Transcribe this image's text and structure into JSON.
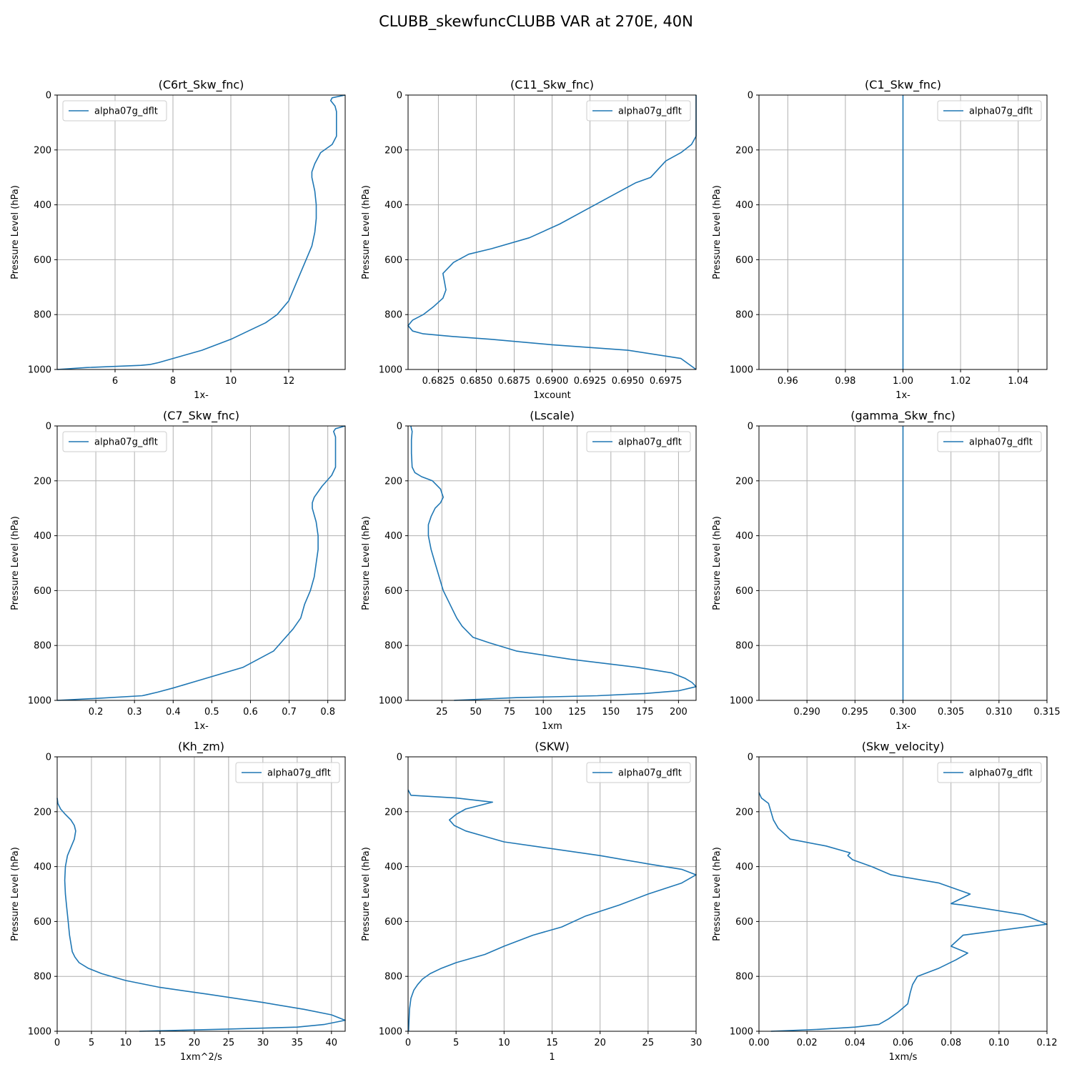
{
  "figure_title": "CLUBB_skewfuncCLUBB VAR at 270E, 40N",
  "colors": {
    "line": "#1f77b4",
    "grid": "#b0b0b0",
    "axes": "#000000"
  },
  "chart_data": [
    {
      "type": "line",
      "title": "(C6rt_Skw_fnc)",
      "xlabel": "1x-",
      "ylabel": "Pressure Level (hPa)",
      "xlim": [
        4.0,
        13.95
      ],
      "ylim": [
        1000,
        0
      ],
      "xticks": [
        6,
        8,
        10,
        12
      ],
      "xtick_labels": [
        "6",
        "8",
        "10",
        "12"
      ],
      "yticks": [
        0,
        200,
        400,
        600,
        800,
        1000
      ],
      "ytick_labels": [
        "0",
        "200",
        "400",
        "600",
        "800",
        "1000"
      ],
      "legend": [
        "alpha07g_dflt"
      ],
      "legend_loc": "upper left",
      "grid": true,
      "series": [
        {
          "name": "alpha07g_dflt",
          "x": [
            13.95,
            13.5,
            13.45,
            13.6,
            13.65,
            13.65,
            13.65,
            13.5,
            13.1,
            12.9,
            12.8,
            12.8,
            12.9,
            12.95,
            12.95,
            12.9,
            12.8,
            12.6,
            12.4,
            12.2,
            12.0,
            11.6,
            11.2,
            10.6,
            10.0,
            9.0,
            8.0,
            7.5,
            7.2,
            6.9,
            5.0,
            4.0
          ],
          "y": [
            0,
            10,
            20,
            40,
            60,
            100,
            150,
            180,
            210,
            250,
            280,
            300,
            350,
            400,
            450,
            500,
            550,
            600,
            650,
            700,
            750,
            800,
            830,
            860,
            890,
            930,
            960,
            975,
            982,
            985,
            993,
            1000
          ]
        }
      ]
    },
    {
      "type": "line",
      "title": "(C11_Skw_fnc)",
      "xlabel": "1xcount",
      "ylabel": "Pressure Level (hPa)",
      "xlim": [
        0.6805,
        0.6995
      ],
      "ylim": [
        1000,
        0
      ],
      "xticks": [
        0.6825,
        0.685,
        0.6875,
        0.69,
        0.6925,
        0.695,
        0.6975
      ],
      "xtick_labels": [
        "0.6825",
        "0.6850",
        "0.6875",
        "0.6900",
        "0.6925",
        "0.6950",
        "0.6975"
      ],
      "yticks": [
        0,
        200,
        400,
        600,
        800,
        1000
      ],
      "ytick_labels": [
        "0",
        "200",
        "400",
        "600",
        "800",
        "1000"
      ],
      "legend": [
        "alpha07g_dflt"
      ],
      "legend_loc": "upper right",
      "grid": true,
      "series": [
        {
          "name": "alpha07g_dflt",
          "x": [
            0.6995,
            0.6995,
            0.6995,
            0.6992,
            0.6985,
            0.6975,
            0.697,
            0.6965,
            0.6955,
            0.6945,
            0.6925,
            0.6905,
            0.6885,
            0.686,
            0.6845,
            0.6835,
            0.6828,
            0.6829,
            0.683,
            0.6828,
            0.6822,
            0.6815,
            0.6808,
            0.6805,
            0.6808,
            0.6815,
            0.6835,
            0.686,
            0.69,
            0.695,
            0.6985,
            0.6995
          ],
          "y": [
            0,
            100,
            150,
            180,
            210,
            240,
            270,
            300,
            320,
            350,
            410,
            470,
            520,
            560,
            580,
            610,
            650,
            680,
            710,
            740,
            770,
            800,
            820,
            840,
            860,
            870,
            880,
            890,
            910,
            930,
            960,
            1000
          ]
        }
      ]
    },
    {
      "type": "line",
      "title": "(C1_Skw_fnc)",
      "xlabel": "1x-",
      "ylabel": "Pressure Level (hPa)",
      "xlim": [
        0.95,
        1.05
      ],
      "ylim": [
        1000,
        0
      ],
      "xticks": [
        0.96,
        0.98,
        1.0,
        1.02,
        1.04
      ],
      "xtick_labels": [
        "0.96",
        "0.98",
        "1.00",
        "1.02",
        "1.04"
      ],
      "yticks": [
        0,
        200,
        400,
        600,
        800,
        1000
      ],
      "ytick_labels": [
        "0",
        "200",
        "400",
        "600",
        "800",
        "1000"
      ],
      "legend": [
        "alpha07g_dflt"
      ],
      "legend_loc": "upper right",
      "grid": true,
      "series": [
        {
          "name": "alpha07g_dflt",
          "x": [
            1.0,
            1.0
          ],
          "y": [
            0,
            1000
          ]
        }
      ]
    },
    {
      "type": "line",
      "title": "(C7_Skw_fnc)",
      "xlabel": "1x-",
      "ylabel": "Pressure Level (hPa)",
      "xlim": [
        0.1,
        0.845
      ],
      "ylim": [
        1000,
        0
      ],
      "xticks": [
        0.2,
        0.3,
        0.4,
        0.5,
        0.6,
        0.7,
        0.8
      ],
      "xtick_labels": [
        "0.2",
        "0.3",
        "0.4",
        "0.5",
        "0.6",
        "0.7",
        "0.8"
      ],
      "yticks": [
        0,
        200,
        400,
        600,
        800,
        1000
      ],
      "ytick_labels": [
        "0",
        "200",
        "400",
        "600",
        "800",
        "1000"
      ],
      "legend": [
        "alpha07g_dflt"
      ],
      "legend_loc": "upper left",
      "grid": true,
      "series": [
        {
          "name": "alpha07g_dflt",
          "x": [
            0.845,
            0.82,
            0.815,
            0.82,
            0.82,
            0.82,
            0.82,
            0.81,
            0.785,
            0.765,
            0.76,
            0.76,
            0.77,
            0.775,
            0.775,
            0.77,
            0.765,
            0.755,
            0.74,
            0.73,
            0.71,
            0.685,
            0.66,
            0.62,
            0.58,
            0.46,
            0.4,
            0.36,
            0.33,
            0.32,
            0.2,
            0.1
          ],
          "y": [
            0,
            10,
            20,
            40,
            60,
            100,
            150,
            180,
            220,
            260,
            280,
            300,
            350,
            400,
            450,
            500,
            550,
            600,
            650,
            700,
            740,
            780,
            820,
            850,
            880,
            930,
            955,
            970,
            980,
            983,
            993,
            1000
          ]
        }
      ]
    },
    {
      "type": "line",
      "title": "(Lscale)",
      "xlabel": "1xm",
      "ylabel": "Pressure Level (hPa)",
      "xlim": [
        0.0,
        213.0
      ],
      "ylim": [
        1000,
        0
      ],
      "xticks": [
        25,
        50,
        75,
        100,
        125,
        150,
        175,
        200
      ],
      "xtick_labels": [
        "25",
        "50",
        "75",
        "100",
        "125",
        "150",
        "175",
        "200"
      ],
      "yticks": [
        0,
        200,
        400,
        600,
        800,
        1000
      ],
      "ytick_labels": [
        "0",
        "200",
        "400",
        "600",
        "800",
        "1000"
      ],
      "legend": [
        "alpha07g_dflt"
      ],
      "legend_loc": "upper right",
      "grid": true,
      "series": [
        {
          "name": "alpha07g_dflt",
          "x": [
            2.0,
            3.0,
            2.5,
            2.5,
            3.0,
            5.0,
            10.0,
            18.0,
            24.0,
            26.0,
            24.0,
            20.0,
            17.0,
            15.0,
            15.0,
            17.0,
            20.0,
            23.0,
            26.0,
            30.0,
            33.0,
            36.0,
            40.0,
            48.0,
            60.0,
            80.0,
            120.0,
            170.0,
            195.0,
            205.0,
            210.0,
            213.0,
            200.0,
            175.0,
            140.0,
            80.0,
            34.0
          ],
          "y": [
            0,
            20,
            50,
            100,
            150,
            170,
            185,
            200,
            230,
            260,
            280,
            300,
            330,
            360,
            400,
            450,
            500,
            550,
            600,
            640,
            670,
            700,
            730,
            770,
            790,
            820,
            850,
            880,
            900,
            920,
            935,
            950,
            965,
            975,
            983,
            990,
            1000
          ]
        }
      ]
    },
    {
      "type": "line",
      "title": "(gamma_Skw_fnc)",
      "xlabel": "1x-",
      "ylabel": "Pressure Level (hPa)",
      "xlim": [
        0.285,
        0.315
      ],
      "ylim": [
        1000,
        0
      ],
      "xticks": [
        0.29,
        0.295,
        0.3,
        0.305,
        0.31,
        0.315
      ],
      "xtick_labels": [
        "0.290",
        "0.295",
        "0.300",
        "0.305",
        "0.310",
        "0.315"
      ],
      "yticks": [
        0,
        200,
        400,
        600,
        800,
        1000
      ],
      "ytick_labels": [
        "0",
        "200",
        "400",
        "600",
        "800",
        "1000"
      ],
      "legend": [
        "alpha07g_dflt"
      ],
      "legend_loc": "upper right",
      "grid": true,
      "series": [
        {
          "name": "alpha07g_dflt",
          "x": [
            0.3,
            0.3
          ],
          "y": [
            0,
            1000
          ]
        }
      ]
    },
    {
      "type": "line",
      "title": "(Kh_zm)",
      "xlabel": "1xm^2/s",
      "ylabel": "Pressure Level (hPa)",
      "xlim": [
        0,
        42
      ],
      "ylim": [
        1000,
        0
      ],
      "xticks": [
        0,
        5,
        10,
        15,
        20,
        25,
        30,
        35,
        40
      ],
      "xtick_labels": [
        "0",
        "5",
        "10",
        "15",
        "20",
        "25",
        "30",
        "35",
        "40"
      ],
      "yticks": [
        0,
        200,
        400,
        600,
        800,
        1000
      ],
      "ytick_labels": [
        "0",
        "200",
        "400",
        "600",
        "800",
        "1000"
      ],
      "legend": [
        "alpha07g_dflt"
      ],
      "legend_loc": "upper right",
      "grid": true,
      "series": [
        {
          "name": "alpha07g_dflt",
          "x": [
            0.0,
            0.1,
            0.5,
            1.2,
            2.0,
            2.5,
            2.7,
            2.5,
            2.0,
            1.5,
            1.2,
            1.1,
            1.2,
            1.4,
            1.6,
            1.8,
            2.0,
            2.2,
            2.6,
            3.2,
            4.5,
            6.5,
            10.0,
            15.0,
            22.0,
            30.0,
            36.0,
            40.0,
            42.0,
            39.0,
            35.0,
            25.0,
            12.0
          ],
          "y": [
            150,
            170,
            190,
            210,
            230,
            250,
            270,
            300,
            330,
            360,
            400,
            450,
            500,
            550,
            600,
            650,
            680,
            710,
            730,
            750,
            770,
            790,
            815,
            840,
            865,
            895,
            920,
            940,
            960,
            975,
            985,
            992,
            1000
          ]
        }
      ]
    },
    {
      "type": "line",
      "title": "(SKW)",
      "xlabel": "1",
      "ylabel": "Pressure Level (hPa)",
      "xlim": [
        0,
        30
      ],
      "ylim": [
        1000,
        0
      ],
      "xticks": [
        0,
        5,
        10,
        15,
        20,
        25,
        30
      ],
      "xtick_labels": [
        "0",
        "5",
        "10",
        "15",
        "20",
        "25",
        "30"
      ],
      "yticks": [
        0,
        200,
        400,
        600,
        800,
        1000
      ],
      "ytick_labels": [
        "0",
        "200",
        "400",
        "600",
        "800",
        "1000"
      ],
      "legend": [
        "alpha07g_dflt"
      ],
      "legend_loc": "upper right",
      "grid": true,
      "series": [
        {
          "name": "alpha07g_dflt",
          "x": [
            0.0,
            0.3,
            5.0,
            8.8,
            6.0,
            5.0,
            4.3,
            4.8,
            6.0,
            8.0,
            10.0,
            14.0,
            20.0,
            25.0,
            28.5,
            30.0,
            28.5,
            25.0,
            22.0,
            18.5,
            16.0,
            13.0,
            10.0,
            8.0,
            5.0,
            3.5,
            2.3,
            1.5,
            1.0,
            0.6,
            0.3,
            0.15,
            0.05
          ],
          "y": [
            120,
            140,
            150,
            165,
            190,
            210,
            230,
            250,
            270,
            290,
            310,
            330,
            360,
            390,
            410,
            430,
            460,
            500,
            540,
            580,
            620,
            650,
            690,
            720,
            750,
            770,
            790,
            810,
            830,
            850,
            880,
            920,
            1000
          ]
        }
      ]
    },
    {
      "type": "line",
      "title": "(Skw_velocity)",
      "xlabel": "1xm/s",
      "ylabel": "Pressure Level (hPa)",
      "xlim": [
        0.0,
        0.12
      ],
      "ylim": [
        1000,
        0
      ],
      "xticks": [
        0.0,
        0.02,
        0.04,
        0.06,
        0.08,
        0.1,
        0.12
      ],
      "xtick_labels": [
        "0.00",
        "0.02",
        "0.04",
        "0.06",
        "0.08",
        "0.10",
        "0.12"
      ],
      "yticks": [
        0,
        200,
        400,
        600,
        800,
        1000
      ],
      "ytick_labels": [
        "0",
        "200",
        "400",
        "600",
        "800",
        "1000"
      ],
      "legend": [
        "alpha07g_dflt"
      ],
      "legend_loc": "upper right",
      "grid": true,
      "series": [
        {
          "name": "alpha07g_dflt",
          "x": [
            0.0,
            0.001,
            0.004,
            0.005,
            0.006,
            0.008,
            0.013,
            0.028,
            0.038,
            0.037,
            0.039,
            0.047,
            0.055,
            0.075,
            0.088,
            0.08,
            0.085,
            0.11,
            0.12,
            0.085,
            0.08,
            0.087,
            0.082,
            0.075,
            0.066,
            0.064,
            0.063,
            0.062,
            0.058,
            0.054,
            0.05,
            0.04,
            0.025,
            0.005
          ],
          "y": [
            130,
            150,
            170,
            200,
            230,
            260,
            300,
            325,
            350,
            360,
            375,
            400,
            430,
            460,
            500,
            535,
            540,
            575,
            610,
            650,
            690,
            715,
            740,
            770,
            800,
            830,
            860,
            900,
            930,
            955,
            975,
            985,
            993,
            1000
          ]
        }
      ]
    }
  ]
}
